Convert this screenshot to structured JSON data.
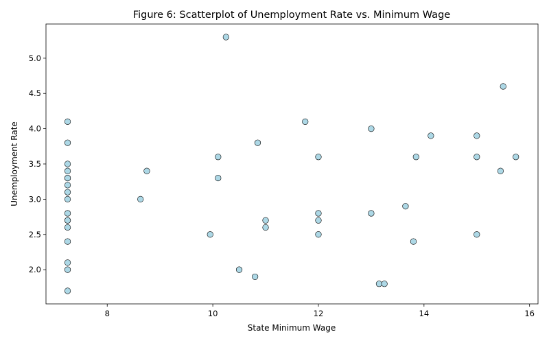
{
  "chart_data": {
    "type": "scatter",
    "title": "Figure 6: Scatterplot of Unemployment Rate vs. Minimum Wage",
    "xlabel": "State Minimum Wage",
    "ylabel": "Unemployment Rate",
    "xlim": [
      6.84,
      16.16
    ],
    "ylim": [
      1.515,
      5.485
    ],
    "x_ticks": [
      8,
      10,
      12,
      14,
      16
    ],
    "x_tick_labels": [
      "8",
      "10",
      "12",
      "14",
      "16"
    ],
    "y_ticks": [
      2.0,
      2.5,
      3.0,
      3.5,
      4.0,
      4.5,
      5.0
    ],
    "y_tick_labels": [
      "2.0",
      "2.5",
      "3.0",
      "3.5",
      "4.0",
      "4.5",
      "5.0"
    ],
    "grid": false,
    "marker_color": "#add8e6",
    "marker_edge_color": "#000000",
    "points": [
      {
        "x": 7.25,
        "y": 4.1
      },
      {
        "x": 7.25,
        "y": 3.8
      },
      {
        "x": 7.25,
        "y": 3.5
      },
      {
        "x": 7.25,
        "y": 3.4
      },
      {
        "x": 7.25,
        "y": 3.3
      },
      {
        "x": 7.25,
        "y": 3.3
      },
      {
        "x": 7.25,
        "y": 3.2
      },
      {
        "x": 7.25,
        "y": 3.1
      },
      {
        "x": 7.25,
        "y": 3.0
      },
      {
        "x": 7.25,
        "y": 2.8
      },
      {
        "x": 7.25,
        "y": 2.7
      },
      {
        "x": 7.25,
        "y": 2.7
      },
      {
        "x": 7.25,
        "y": 2.6
      },
      {
        "x": 7.25,
        "y": 2.4
      },
      {
        "x": 7.25,
        "y": 2.1
      },
      {
        "x": 7.25,
        "y": 2.0
      },
      {
        "x": 7.25,
        "y": 1.7
      },
      {
        "x": 8.75,
        "y": 3.4
      },
      {
        "x": 8.63,
        "y": 3.0
      },
      {
        "x": 10.25,
        "y": 5.3
      },
      {
        "x": 10.1,
        "y": 3.6
      },
      {
        "x": 10.1,
        "y": 3.3
      },
      {
        "x": 9.95,
        "y": 2.5
      },
      {
        "x": 10.5,
        "y": 2.0
      },
      {
        "x": 10.8,
        "y": 1.9
      },
      {
        "x": 10.85,
        "y": 3.8
      },
      {
        "x": 11.0,
        "y": 2.7
      },
      {
        "x": 11.0,
        "y": 2.6
      },
      {
        "x": 11.75,
        "y": 4.1
      },
      {
        "x": 12.0,
        "y": 3.6
      },
      {
        "x": 12.0,
        "y": 2.8
      },
      {
        "x": 12.0,
        "y": 2.7
      },
      {
        "x": 12.0,
        "y": 2.5
      },
      {
        "x": 13.0,
        "y": 4.0
      },
      {
        "x": 13.0,
        "y": 2.8
      },
      {
        "x": 13.15,
        "y": 1.8
      },
      {
        "x": 13.25,
        "y": 1.8
      },
      {
        "x": 13.65,
        "y": 2.9
      },
      {
        "x": 13.8,
        "y": 2.4
      },
      {
        "x": 13.85,
        "y": 3.6
      },
      {
        "x": 14.13,
        "y": 3.9
      },
      {
        "x": 15.0,
        "y": 3.9
      },
      {
        "x": 15.0,
        "y": 3.6
      },
      {
        "x": 15.0,
        "y": 2.5
      },
      {
        "x": 15.45,
        "y": 3.4
      },
      {
        "x": 15.5,
        "y": 4.6
      },
      {
        "x": 15.74,
        "y": 3.6
      }
    ]
  }
}
